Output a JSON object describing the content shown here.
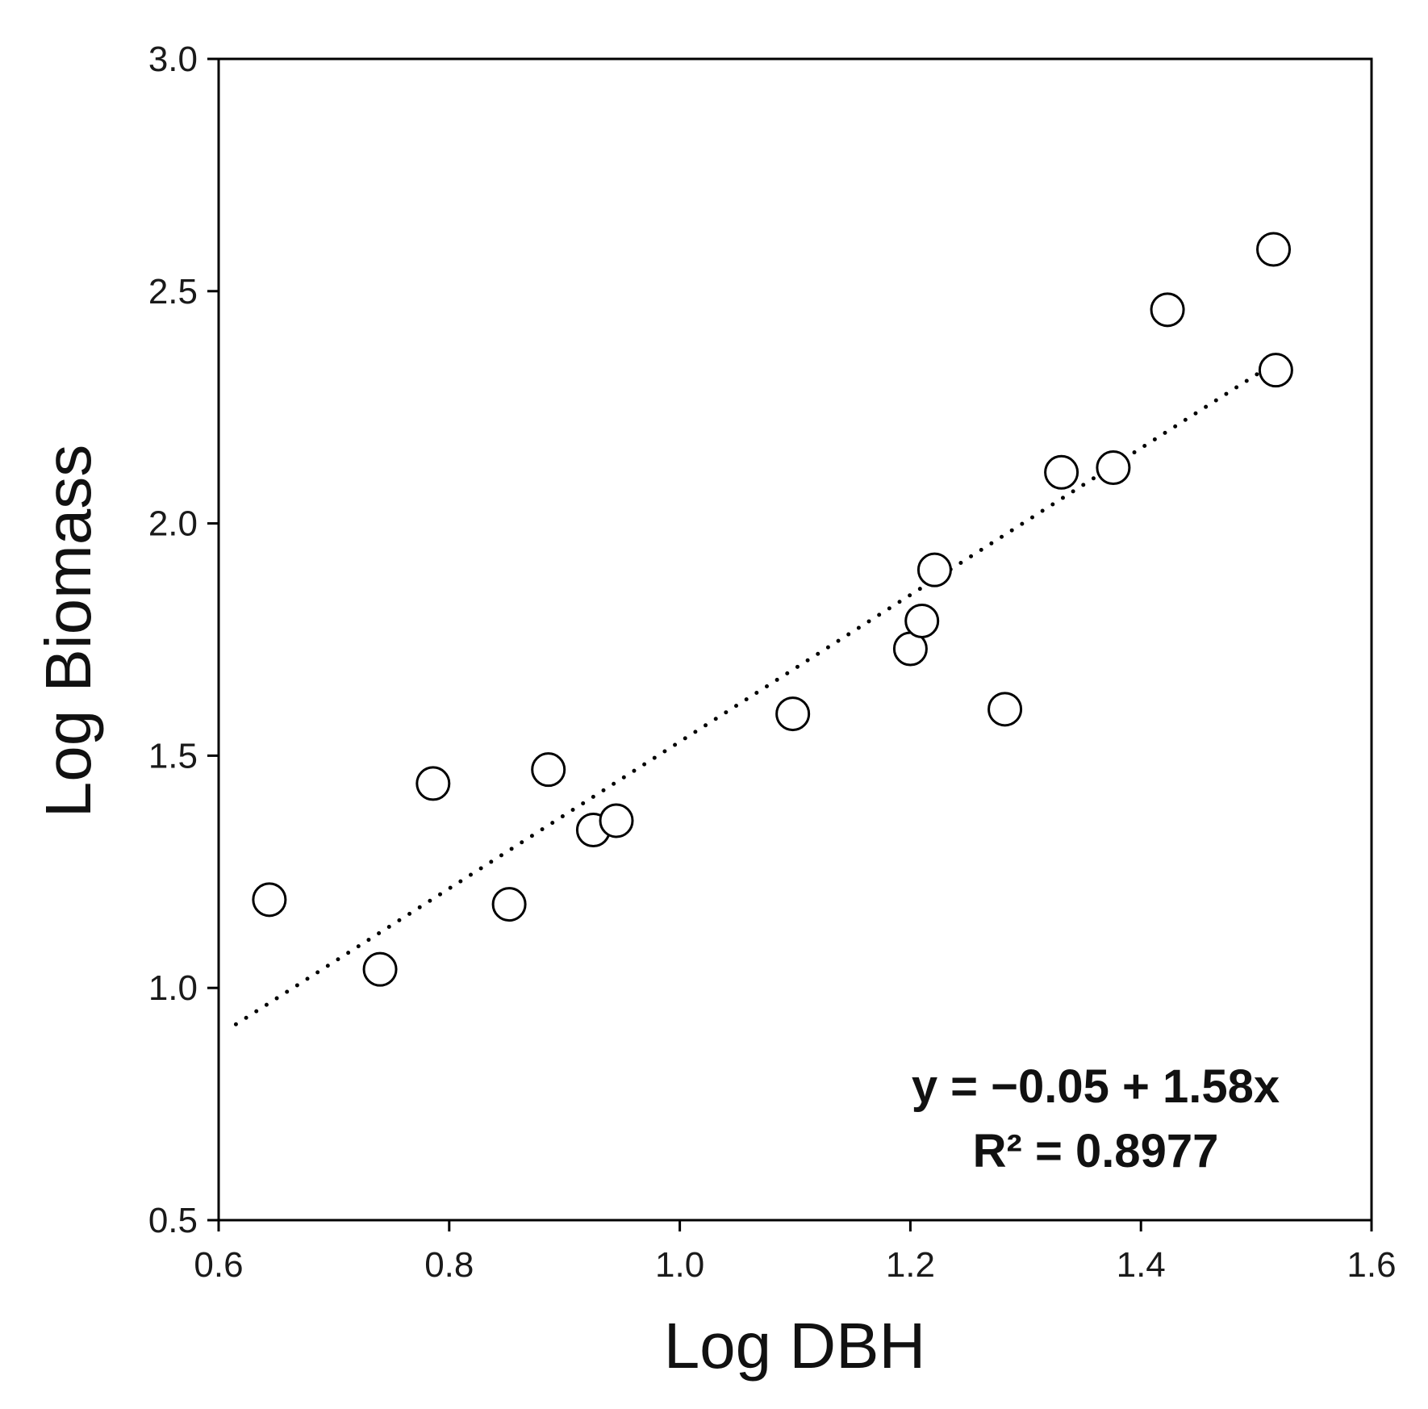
{
  "chart_data": {
    "type": "scatter",
    "title": "",
    "xlabel": "Log DBH",
    "ylabel": "Log Biomass",
    "xlim": [
      0.6,
      1.6
    ],
    "ylim": [
      0.5,
      3.0
    ],
    "xticks": [
      "0.6",
      "0.8",
      "1.0",
      "1.2",
      "1.4",
      "1.6"
    ],
    "yticks": [
      "0.5",
      "1.0",
      "1.5",
      "2.0",
      "2.5",
      "3.0"
    ],
    "grid": false,
    "legend": "none",
    "points": [
      {
        "x": 0.644,
        "y": 1.19
      },
      {
        "x": 0.74,
        "y": 1.04
      },
      {
        "x": 0.786,
        "y": 1.44
      },
      {
        "x": 0.852,
        "y": 1.18
      },
      {
        "x": 0.886,
        "y": 1.47
      },
      {
        "x": 0.925,
        "y": 1.34
      },
      {
        "x": 0.945,
        "y": 1.36
      },
      {
        "x": 1.098,
        "y": 1.59
      },
      {
        "x": 1.2,
        "y": 1.73
      },
      {
        "x": 1.21,
        "y": 1.79
      },
      {
        "x": 1.221,
        "y": 1.9
      },
      {
        "x": 1.282,
        "y": 1.6
      },
      {
        "x": 1.331,
        "y": 2.11
      },
      {
        "x": 1.376,
        "y": 2.12
      },
      {
        "x": 1.423,
        "y": 2.46
      },
      {
        "x": 1.515,
        "y": 2.59
      },
      {
        "x": 1.517,
        "y": 2.33
      }
    ],
    "trendline": {
      "style": "dotted",
      "intercept": -0.05,
      "slope": 1.58,
      "x_range": [
        0.615,
        1.515
      ]
    },
    "annotations": {
      "equation": "y = −0.05 + 1.58x",
      "r_squared": "R² = 0.8977"
    },
    "colors": {
      "axis": "#000000",
      "marker_stroke": "#000000",
      "marker_fill": "#ffffff",
      "trendline": "#000000"
    },
    "marker": "open-circle"
  }
}
